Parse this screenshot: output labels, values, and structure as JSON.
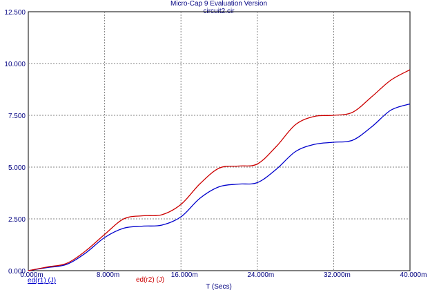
{
  "window": {
    "title": "Micro-Cap 9 Evaluation Version",
    "subtitle": "circuit2.cir"
  },
  "chart_data": {
    "type": "line",
    "xlabel": "T (Secs)",
    "ylabel": "",
    "xlim": [
      0,
      0.04
    ],
    "ylim": [
      0,
      12.5
    ],
    "grid": true,
    "x_ticks": [
      "0.000m",
      "8.000m",
      "16.000m",
      "24.000m",
      "32.000m",
      "40.000m"
    ],
    "y_ticks": [
      "0.000",
      "2.500",
      "5.000",
      "7.500",
      "10.000",
      "12.500"
    ],
    "legend_placement": "bottom",
    "series": [
      {
        "name": "ed(r1) (J)",
        "color": "#0000cc",
        "x": [
          0,
          0.002,
          0.004,
          0.006,
          0.008,
          0.01,
          0.012,
          0.014,
          0.016,
          0.018,
          0.02,
          0.022,
          0.024,
          0.026,
          0.028,
          0.03,
          0.032,
          0.034,
          0.036,
          0.038,
          0.04
        ],
        "y": [
          0.0,
          0.15,
          0.3,
          0.85,
          1.6,
          2.05,
          2.15,
          2.2,
          2.6,
          3.5,
          4.05,
          4.18,
          4.25,
          4.9,
          5.75,
          6.1,
          6.2,
          6.3,
          6.95,
          7.75,
          8.05
        ]
      },
      {
        "name": "ed(r2) (J)",
        "color": "#cc0000",
        "x": [
          0,
          0.002,
          0.004,
          0.006,
          0.008,
          0.01,
          0.012,
          0.014,
          0.016,
          0.018,
          0.02,
          0.022,
          0.024,
          0.026,
          0.028,
          0.03,
          0.032,
          0.034,
          0.036,
          0.038,
          0.04
        ],
        "y": [
          0.0,
          0.18,
          0.35,
          0.95,
          1.75,
          2.5,
          2.65,
          2.7,
          3.2,
          4.2,
          4.95,
          5.05,
          5.15,
          6.0,
          7.05,
          7.45,
          7.5,
          7.65,
          8.4,
          9.2,
          9.7
        ]
      }
    ]
  }
}
